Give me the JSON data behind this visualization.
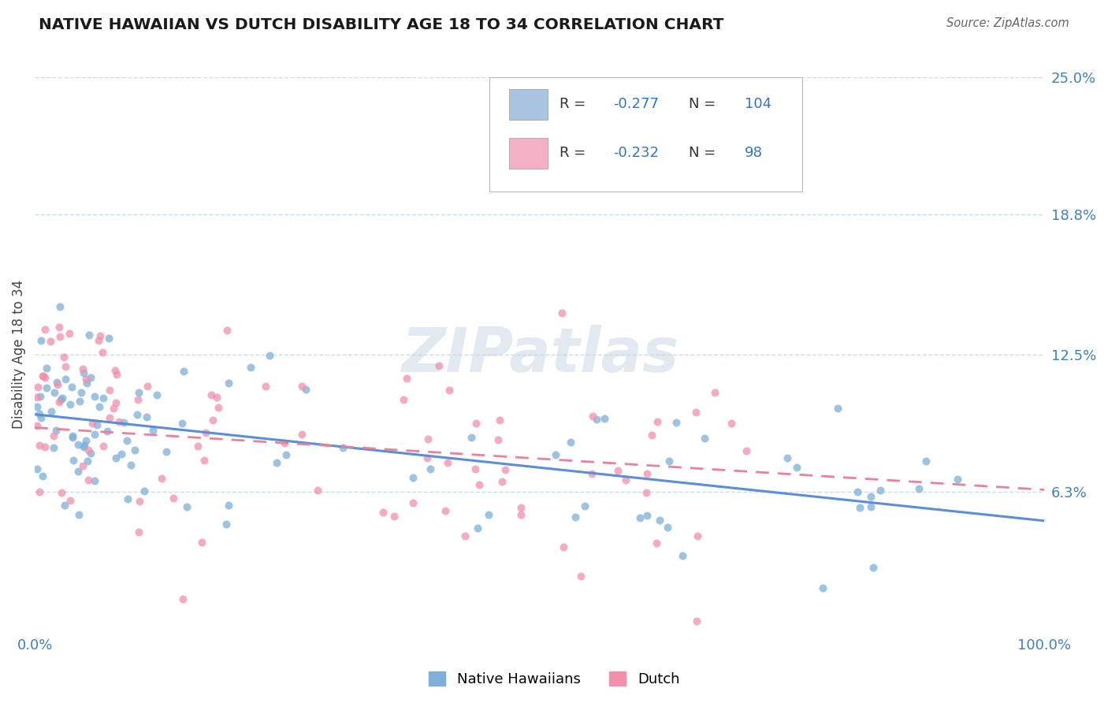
{
  "title": "NATIVE HAWAIIAN VS DUTCH DISABILITY AGE 18 TO 34 CORRELATION CHART",
  "source": "Source: ZipAtlas.com",
  "ylabel": "Disability Age 18 to 34",
  "xlim": [
    0,
    100
  ],
  "ylim": [
    0,
    25
  ],
  "yticks": [
    6.3,
    12.5,
    18.8,
    25.0
  ],
  "xticks": [
    0,
    100
  ],
  "xtick_labels": [
    "0.0%",
    "100.0%"
  ],
  "ytick_labels": [
    "6.3%",
    "12.5%",
    "18.8%",
    "25.0%"
  ],
  "series": [
    {
      "name": "Native Hawaiians",
      "R": -0.277,
      "N": 104,
      "legend_color": "#a8c4e0",
      "line_color": "#5b8ed6",
      "marker_color": "#7dafd8",
      "marker_alpha": 0.75,
      "trend_intercept": 9.8,
      "trend_slope": -0.048
    },
    {
      "name": "Dutch",
      "R": -0.232,
      "N": 98,
      "legend_color": "#f4b0c4",
      "line_color": "#e8829a",
      "marker_color": "#f090aa",
      "marker_alpha": 0.75,
      "trend_intercept": 9.2,
      "trend_slope": -0.028
    }
  ],
  "background_color": "#ffffff",
  "grid_color": "#c8d8e8",
  "watermark": "ZIPatlas",
  "seed_nh": 7,
  "seed_dutch": 99
}
